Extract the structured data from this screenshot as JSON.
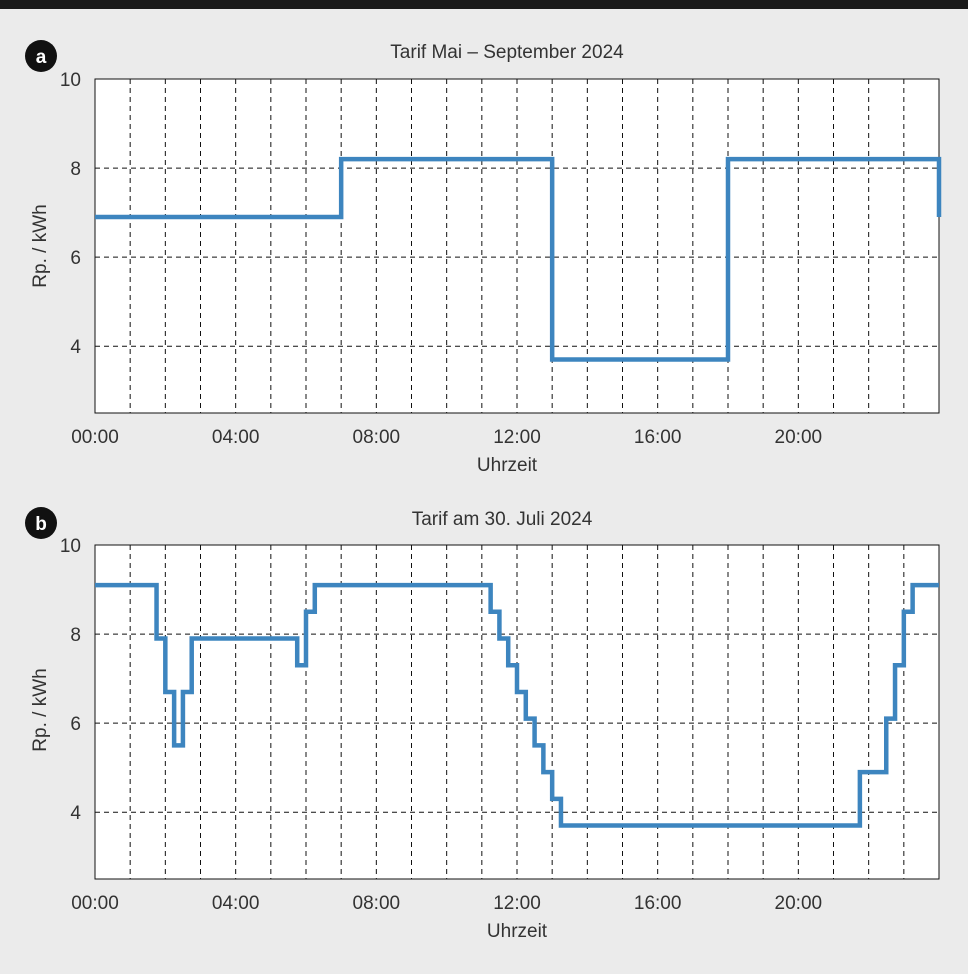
{
  "colors": {
    "series": "#3d85bf",
    "background": "#ebebeb",
    "top_bar": "#1a1a1a"
  },
  "chart_data": [
    {
      "type": "line",
      "panel_label": "a",
      "title": "Tarif Mai – September 2024",
      "xlabel": "Uhrzeit",
      "ylabel": "Rp. / kWh",
      "xlim": [
        "00:00",
        "24:00"
      ],
      "ylim": [
        2.5,
        10
      ],
      "x_ticks": [
        "00:00",
        "04:00",
        "08:00",
        "12:00",
        "16:00",
        "20:00"
      ],
      "y_ticks": [
        4,
        6,
        8,
        10
      ],
      "grid": true,
      "step": "post",
      "x": [
        "00:00",
        "07:00",
        "13:00",
        "18:00",
        "24:00"
      ],
      "values": [
        6.9,
        8.2,
        3.7,
        8.2,
        6.9
      ]
    },
    {
      "type": "line",
      "panel_label": "b",
      "title": "Tarif am 30. Juli 2024",
      "xlabel": "Uhrzeit",
      "ylabel": "Rp. / kWh",
      "xlim": [
        "00:00",
        "24:00"
      ],
      "ylim": [
        2.5,
        10
      ],
      "x_ticks": [
        "00:00",
        "04:00",
        "08:00",
        "12:00",
        "16:00",
        "20:00"
      ],
      "y_ticks": [
        4,
        6,
        8,
        10
      ],
      "grid": true,
      "step": "post",
      "x": [
        "00:00",
        "01:45",
        "02:00",
        "02:15",
        "02:30",
        "02:45",
        "05:45",
        "06:00",
        "06:15",
        "11:15",
        "11:30",
        "11:45",
        "12:00",
        "12:15",
        "12:30",
        "12:45",
        "13:00",
        "13:15",
        "21:45",
        "22:30",
        "22:45",
        "23:00",
        "23:15",
        "23:30",
        "24:00"
      ],
      "values": [
        9.1,
        7.9,
        6.7,
        5.5,
        6.7,
        7.9,
        7.3,
        8.5,
        9.1,
        8.5,
        7.9,
        7.3,
        6.7,
        6.1,
        5.5,
        4.9,
        4.3,
        3.7,
        4.9,
        6.1,
        7.3,
        8.5,
        9.1,
        9.1,
        9.1
      ]
    }
  ]
}
